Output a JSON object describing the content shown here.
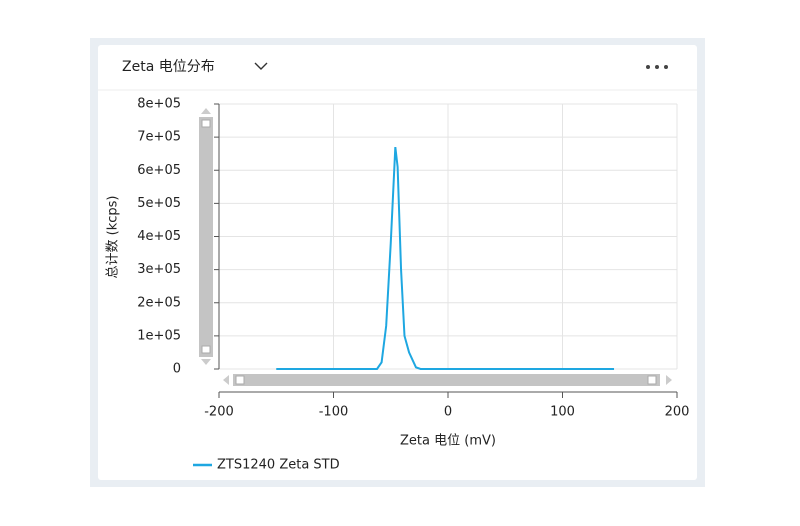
{
  "header": {
    "title": "Zeta 电位分布"
  },
  "chart_data": {
    "type": "line",
    "x_label": "Zeta 电位 (mV)",
    "y_label": "总计数 (kcps)",
    "x": [
      -150,
      -62,
      -58,
      -54,
      -50,
      -46,
      -44,
      -41,
      -38,
      -34,
      -28,
      -24,
      145
    ],
    "series": [
      {
        "name": "ZTS1240 Zeta STD",
        "color": "#1ea7e1",
        "values": [
          0,
          0,
          20000,
          130000,
          380000,
          670000,
          610000,
          300000,
          100000,
          50000,
          5000,
          0,
          0
        ]
      }
    ],
    "xlim": [
      -200,
      200
    ],
    "xticks": [
      -200,
      -100,
      0,
      100,
      200
    ],
    "ylim": [
      0,
      800000
    ],
    "yticks": [
      0,
      {
        "value": 100000,
        "label": "1e+05"
      },
      {
        "value": 200000,
        "label": "2e+05"
      },
      {
        "value": 300000,
        "label": "3e+05"
      },
      {
        "value": 400000,
        "label": "4e+05"
      },
      {
        "value": 500000,
        "label": "5e+05"
      },
      {
        "value": 600000,
        "label": "6e+05"
      },
      {
        "value": 700000,
        "label": "7e+05"
      },
      {
        "value": 800000,
        "label": "8e+05"
      }
    ],
    "grid": true
  }
}
